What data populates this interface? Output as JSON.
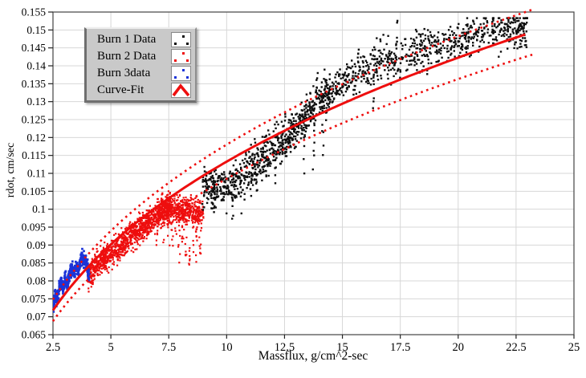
{
  "window": {
    "background": "#ffffff"
  },
  "chart_data": {
    "type": "scatter",
    "title": "",
    "xlabel": "Massflux, g/cm^2-sec",
    "ylabel": "rdot, cm/sec",
    "xlim": [
      2.5,
      25
    ],
    "ylim": [
      0.065,
      0.155
    ],
    "xticks": [
      "2.5",
      "5",
      "7.5",
      "10",
      "12.5",
      "15",
      "17.5",
      "20",
      "22.5",
      "25"
    ],
    "yticks": [
      "0.065",
      "0.07",
      "0.075",
      "0.08",
      "0.085",
      "0.09",
      "0.095",
      "0.1",
      "0.105",
      "0.11",
      "0.115",
      "0.12",
      "0.125",
      "0.13",
      "0.135",
      "0.14",
      "0.145",
      "0.15",
      "0.155"
    ],
    "grid": true,
    "grid_color": "#d7d7d7",
    "axis_color": "#444444",
    "legend": {
      "position": "top-left",
      "entries": [
        {
          "label": "Burn 1 Data",
          "type": "scatter",
          "color": "#0f0f0f"
        },
        {
          "label": "Burn 2 Data",
          "type": "scatter",
          "color": "#ee0e0e"
        },
        {
          "label": "Burn 3data",
          "type": "scatter",
          "color": "#1c34d8"
        },
        {
          "label": "Curve-Fit",
          "type": "line",
          "color": "#ee0e0e"
        }
      ]
    },
    "curve_fit": {
      "model": "rdot = a * massflux^n",
      "a": 0.0531,
      "n": 0.329,
      "x_range": [
        2.5,
        22.9
      ],
      "color": "#ee0e0e",
      "width": 3,
      "bounds": {
        "upper_factor": 1.042,
        "lower_factor": 0.958,
        "x_range": [
          2.5,
          23.2
        ],
        "style": "dotted"
      }
    },
    "series": [
      {
        "name": "Burn 1 Data",
        "kind": "cloud",
        "color": "#0f0f0f",
        "marker": 2.4,
        "n": 1450,
        "x_segments": [
          {
            "range": [
              8.95,
              14.5
            ],
            "frac": 0.53
          },
          {
            "range": [
              14.5,
              23.0
            ],
            "frac": 0.47
          }
        ],
        "center": {
          "type": "fit_drift",
          "drift": [
            [
              8.95,
              -0.003
            ],
            [
              10,
              -0.007
            ],
            [
              11,
              -0.006
            ],
            [
              12.5,
              -0.003
            ],
            [
              14,
              0.004
            ],
            [
              16,
              0.007
            ],
            [
              18,
              0.006
            ],
            [
              20,
              0.005
            ],
            [
              23,
              0.003
            ]
          ]
        },
        "noise_sd": 0.0028,
        "clamp": 0.0078,
        "y_max": 0.1533,
        "columns": [
          {
            "x": 9.45,
            "depth": 0.009,
            "n": 7
          },
          {
            "x": 10.25,
            "depth": 0.011,
            "n": 7
          },
          {
            "x": 10.6,
            "depth": 0.012,
            "n": 7
          },
          {
            "x": 11.3,
            "depth": 0.009,
            "n": 6
          },
          {
            "x": 12.1,
            "depth": 0.01,
            "n": 6
          },
          {
            "x": 13.35,
            "depth": 0.016,
            "n": 8
          },
          {
            "x": 13.75,
            "depth": 0.02,
            "n": 8
          },
          {
            "x": 14.15,
            "depth": 0.018,
            "n": 8
          },
          {
            "x": 16.35,
            "depth": 0.014,
            "n": 7
          },
          {
            "x": 13.9,
            "depth": -0.009,
            "n": 6
          },
          {
            "x": 17.35,
            "depth": -0.012,
            "n": 7
          },
          {
            "x": 12.55,
            "depth": -0.008,
            "n": 5
          },
          {
            "x": 20.35,
            "depth": -0.007,
            "n": 5
          }
        ],
        "arch": {
          "x0": 22.42,
          "x1": 22.95,
          "base": 0.1452,
          "amp": 0.0063,
          "n": 26
        }
      },
      {
        "name": "Burn 2 Data",
        "kind": "cloud",
        "color": "#ee0e0e",
        "marker": 2.2,
        "n": 1500,
        "x_segments": [
          {
            "range": [
              4.0,
              7.6
            ],
            "frac": 0.68
          },
          {
            "range": [
              7.0,
              9.0
            ],
            "frac": 0.32
          }
        ],
        "center": {
          "type": "fit_flat",
          "offset": -0.0025,
          "flat_after": 7.4,
          "flat_slope": -0.0008
        },
        "noise_sd": 0.0019,
        "clamp": 0.0052,
        "y_max": 0.108,
        "columns": [
          {
            "x": 7.0,
            "depth": 0.008,
            "n": 8
          },
          {
            "x": 7.3,
            "depth": 0.009,
            "n": 8
          },
          {
            "x": 7.5,
            "depth": 0.01,
            "n": 9
          },
          {
            "x": 7.65,
            "depth": 0.012,
            "n": 9
          },
          {
            "x": 7.8,
            "depth": 0.009,
            "n": 9
          },
          {
            "x": 7.95,
            "depth": 0.016,
            "n": 9
          },
          {
            "x": 8.1,
            "depth": 0.01,
            "n": 9
          },
          {
            "x": 8.25,
            "depth": 0.013,
            "n": 9
          },
          {
            "x": 8.4,
            "depth": 0.0155,
            "n": 9
          },
          {
            "x": 8.55,
            "depth": 0.011,
            "n": 9
          },
          {
            "x": 8.7,
            "depth": 0.014,
            "n": 9
          },
          {
            "x": 8.85,
            "depth": 0.0125,
            "n": 9
          }
        ]
      },
      {
        "name": "Burn 3data",
        "kind": "path",
        "color": "#1c34d8",
        "marker": 2.7,
        "n": 520,
        "noise_sd": 0.0009,
        "points": [
          [
            2.52,
            0.0733
          ],
          [
            2.6,
            0.0762
          ],
          [
            2.66,
            0.0744
          ],
          [
            2.78,
            0.0783
          ],
          [
            2.87,
            0.0797
          ],
          [
            2.93,
            0.0771
          ],
          [
            3.03,
            0.0809
          ],
          [
            3.1,
            0.0787
          ],
          [
            3.22,
            0.0821
          ],
          [
            3.33,
            0.0838
          ],
          [
            3.41,
            0.0813
          ],
          [
            3.52,
            0.0845
          ],
          [
            3.6,
            0.0827
          ],
          [
            3.7,
            0.0861
          ],
          [
            3.76,
            0.0868
          ],
          [
            3.83,
            0.0852
          ],
          [
            3.9,
            0.0862
          ],
          [
            3.98,
            0.0838
          ],
          [
            4.06,
            0.0815
          ]
        ]
      }
    ]
  }
}
